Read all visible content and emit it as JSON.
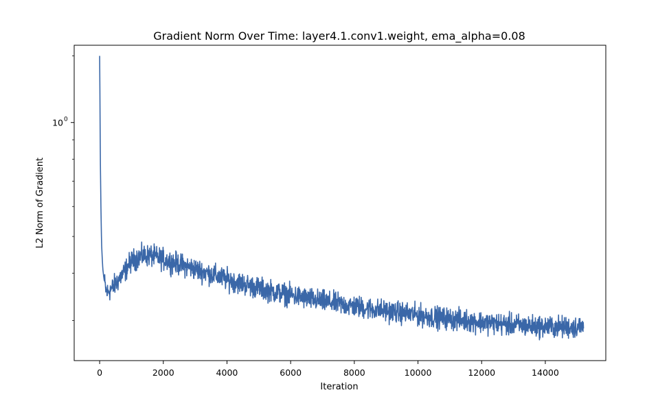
{
  "chart_data": {
    "type": "line",
    "title": "Gradient Norm Over Time: layer4.1.conv1.weight, ema_alpha=0.08",
    "xlabel": "Iteration",
    "ylabel": "L2 Norm of Gradient",
    "xlim": [
      -800,
      15900
    ],
    "ylim": [
      0.235,
      1.6
    ],
    "yscale": "log",
    "grid": false,
    "legend": "none",
    "x_ticks": [
      0,
      2000,
      4000,
      6000,
      8000,
      10000,
      12000,
      14000
    ],
    "x_tick_labels": [
      "0",
      "2000",
      "4000",
      "6000",
      "8000",
      "10000",
      "12000",
      "14000"
    ],
    "y_ticks": [
      1.0
    ],
    "y_tick_labels": [
      "10",
      "0"
    ],
    "line_color": "#3a67a8",
    "series": [
      {
        "x": [
          0,
          10,
          20,
          40,
          60,
          80,
          100,
          130,
          160,
          200,
          250,
          300,
          400,
          500,
          600,
          700,
          800,
          900,
          1000,
          1200,
          1400,
          1600,
          1800,
          2000,
          2400,
          2800,
          3200,
          3600,
          4000,
          4500,
          5000,
          5500,
          6000,
          6500,
          7000,
          7500,
          8000,
          8500,
          9000,
          9500,
          10000,
          10500,
          11000,
          11500,
          12000,
          12500,
          13000,
          13500,
          14000,
          14500,
          15000,
          15200
        ],
        "values": [
          1.5,
          1.15,
          0.82,
          0.6,
          0.48,
          0.44,
          0.41,
          0.39,
          0.375,
          0.36,
          0.355,
          0.36,
          0.365,
          0.375,
          0.385,
          0.395,
          0.405,
          0.42,
          0.43,
          0.44,
          0.445,
          0.445,
          0.44,
          0.435,
          0.425,
          0.415,
          0.405,
          0.395,
          0.385,
          0.375,
          0.365,
          0.357,
          0.35,
          0.343,
          0.337,
          0.332,
          0.327,
          0.322,
          0.318,
          0.314,
          0.31,
          0.306,
          0.303,
          0.3,
          0.297,
          0.294,
          0.292,
          0.29,
          0.289,
          0.288,
          0.288,
          0.289
        ]
      }
    ]
  }
}
